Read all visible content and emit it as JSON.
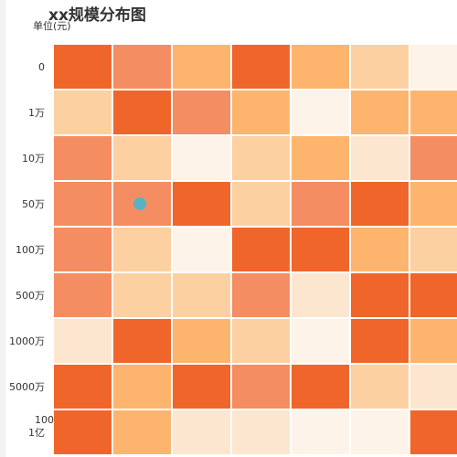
{
  "colors": {
    "level_0": "#fdf3e9",
    "level_1": "#fde6d0",
    "level_2": "#fdd0a2",
    "level_3": "#fdb56d",
    "level_4": "#f58d62",
    "level_5": "#f0662a",
    "marker": "#5bb1c4",
    "cell_border": "#ffffff"
  },
  "chart_data": {
    "type": "heatmap",
    "title": "xx规模分布图",
    "unit_label": "单位(元)",
    "y_categories": [
      "0",
      "1万",
      "10万",
      "50万",
      "100万",
      "500万",
      "1000万",
      "5000万",
      "1亿"
    ],
    "overlapping_fragment": "100",
    "columns_visible": 7,
    "levels": [
      [
        5,
        4,
        3,
        5,
        3,
        2,
        0
      ],
      [
        2,
        5,
        4,
        3,
        0,
        3,
        3
      ],
      [
        4,
        2,
        0,
        2,
        3,
        1,
        4
      ],
      [
        4,
        4,
        5,
        2,
        4,
        5,
        3
      ],
      [
        4,
        2,
        0,
        5,
        5,
        3,
        2
      ],
      [
        4,
        2,
        2,
        4,
        1,
        5,
        5
      ],
      [
        1,
        5,
        3,
        2,
        0,
        5,
        3
      ],
      [
        5,
        3,
        5,
        4,
        5,
        2,
        1
      ],
      [
        5,
        3,
        1,
        1,
        0,
        0,
        5
      ]
    ],
    "marker": {
      "row": 3,
      "col": 1
    }
  }
}
